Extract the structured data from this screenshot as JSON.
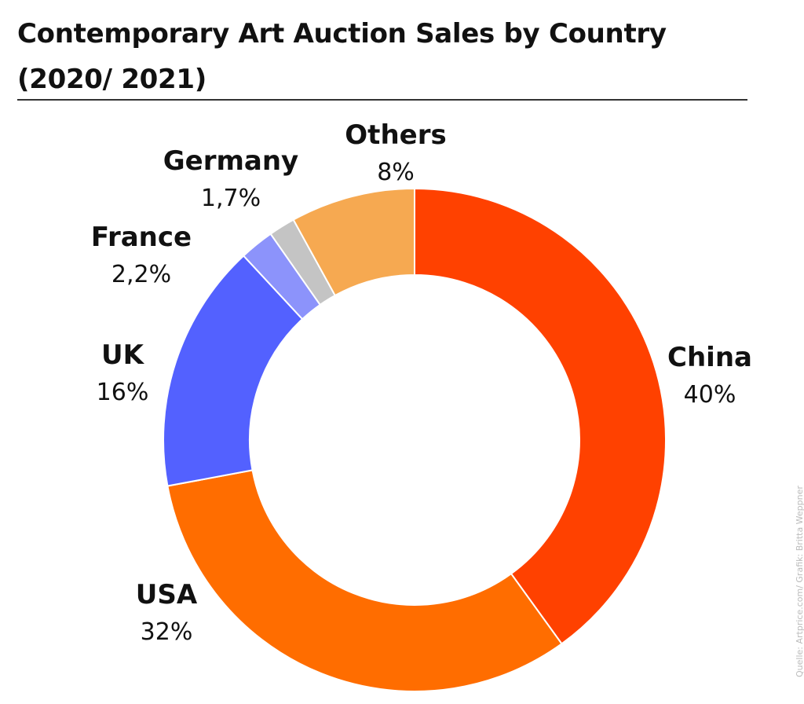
{
  "title_line1": "Contemporary Art Auction Sales by Country",
  "title_line2": "(2020/ 2021)",
  "source": "Quelle: Artprice.com/ Grafik: Britta Weppner",
  "chart_data": {
    "type": "pie",
    "donut": true,
    "title": "Contemporary Art Auction Sales by Country (2020/ 2021)",
    "start_angle_deg": 0,
    "direction": "clockwise",
    "slices": [
      {
        "name": "China",
        "value": 40,
        "label": "40%",
        "color": "#ff4100"
      },
      {
        "name": "USA",
        "value": 32,
        "label": "32%",
        "color": "#ff6d00"
      },
      {
        "name": "UK",
        "value": 16,
        "label": "16%",
        "color": "#5361ff"
      },
      {
        "name": "France",
        "value": 2.2,
        "label": "2,2%",
        "color": "#8c93fb"
      },
      {
        "name": "Germany",
        "value": 1.7,
        "label": "1,7%",
        "color": "#c4c4c4"
      },
      {
        "name": "Others",
        "value": 8,
        "label": "8%",
        "color": "#f6a951"
      }
    ]
  }
}
